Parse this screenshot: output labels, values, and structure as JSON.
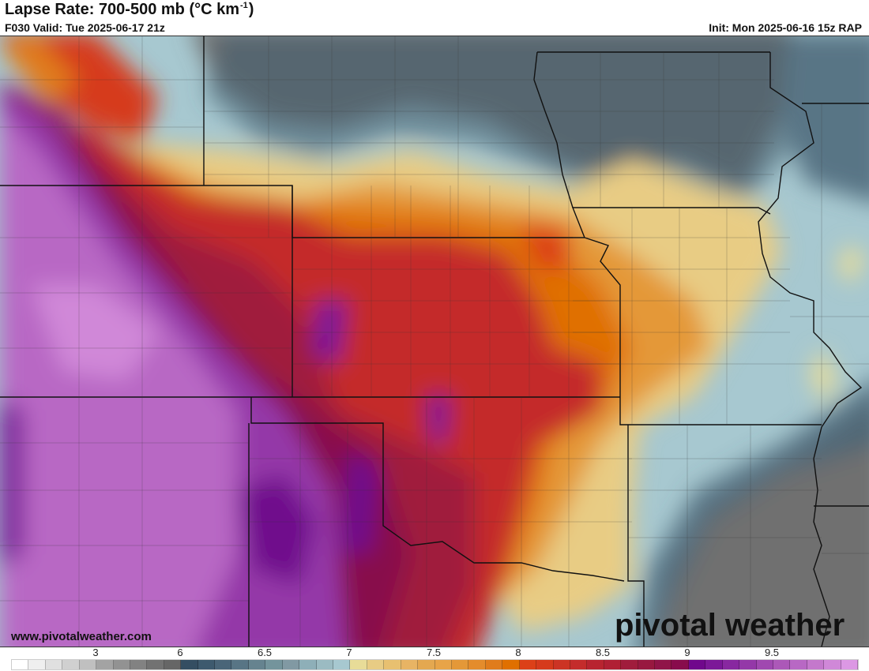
{
  "header": {
    "title": "Lapse Rate: 700-500 mb (°C km",
    "title_sup": "-1",
    "title_end": ")",
    "valid": "F030 Valid: Tue 2025-06-17 21z",
    "init": "Init: Mon 2025-06-16 15z RAP"
  },
  "footer": {
    "site": "www.pivotalweather.com",
    "logo": "pivotal weather"
  },
  "colorbar": {
    "labels": [
      "3",
      "6",
      "6.5",
      "7",
      "7.5",
      "8",
      "8.5",
      "9",
      "9.5"
    ],
    "colors": [
      "#ffffff",
      "#efefef",
      "#e0e0e0",
      "#d0d0d0",
      "#c0c0c0",
      "#a3a3a3",
      "#929292",
      "#828282",
      "#727272",
      "#666666",
      "#344e62",
      "#3e5a6e",
      "#4a6578",
      "#587585",
      "#66838f",
      "#74949c",
      "#8199a3",
      "#8eafb8",
      "#9bbbc2",
      "#a7c8d0",
      "#e8dc98",
      "#e8cc84",
      "#e8c070",
      "#e8b464",
      "#e4a850",
      "#e8a448",
      "#e49838",
      "#e48c2c",
      "#e07c1c",
      "#e07000",
      "#dc4018",
      "#d63a1c",
      "#cc3424",
      "#c42c2c",
      "#b82430",
      "#b02034",
      "#a01c3c",
      "#981840",
      "#901448",
      "#880c4c",
      "#70088c",
      "#7c1898",
      "#8828a0",
      "#9438a8",
      "#a048b0",
      "#ac58b8",
      "#b868c4",
      "#c478cc",
      "#d088d8",
      "#dc98e4"
    ]
  }
}
